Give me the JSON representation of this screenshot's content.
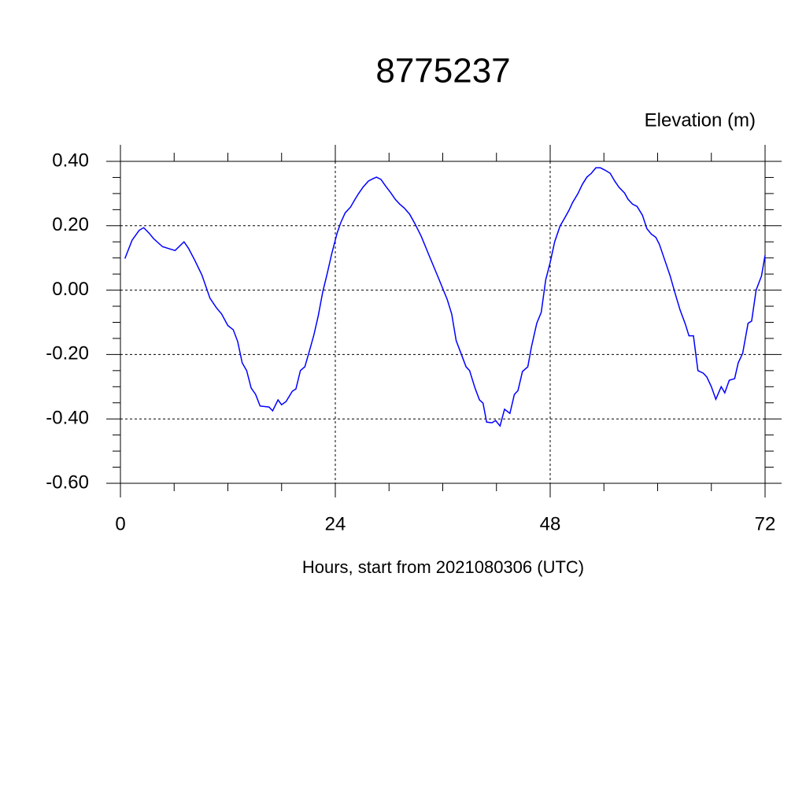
{
  "chart_data": {
    "type": "line",
    "title": "8775237",
    "ylabel": "Elevation (m)",
    "xlabel": "Hours, start from 2021080306 (UTC)",
    "x": [
      0.5,
      1.3,
      2.1,
      2.6,
      3.2,
      3.7,
      4.7,
      6.1,
      7.1,
      7.6,
      8.3,
      9.1,
      10.0,
      10.7,
      11.3,
      12.0,
      12.6,
      13.1,
      13.6,
      14.1,
      14.6,
      15.1,
      15.6,
      16.6,
      17.0,
      17.6,
      18.0,
      18.5,
      19.2,
      19.6,
      20.1,
      20.6,
      21.2,
      21.6,
      22.1,
      22.6,
      23.1,
      23.6,
      24.2,
      24.6,
      25.1,
      25.7,
      26.2,
      26.6,
      27.1,
      27.7,
      28.2,
      28.6,
      29.1,
      29.6,
      30.2,
      30.7,
      31.2,
      31.7,
      32.3,
      32.9,
      33.6,
      34.5,
      35.5,
      36.5,
      37.0,
      37.5,
      38.1,
      38.6,
      39.0,
      39.6,
      40.1,
      40.5,
      40.9,
      41.5,
      41.9,
      42.4,
      42.9,
      43.5,
      44.0,
      44.4,
      44.9,
      45.5,
      45.9,
      46.5,
      47.0,
      47.5,
      48.0,
      48.5,
      49.1,
      49.6,
      50.1,
      50.5,
      51.1,
      51.6,
      52.1,
      52.6,
      53.1,
      53.6,
      54.1,
      54.7,
      55.2,
      55.7,
      56.3,
      56.7,
      57.2,
      57.7,
      58.3,
      58.8,
      59.3,
      59.8,
      60.2,
      60.8,
      61.4,
      61.9,
      62.5,
      63.1,
      63.5,
      64.0,
      64.5,
      65.1,
      65.5,
      66.0,
      66.5,
      67.1,
      67.5,
      68.0,
      68.6,
      69.0,
      69.5,
      70.1,
      70.5,
      71.0,
      71.6,
      72.0
    ],
    "series": [
      {
        "color": "#0000ff",
        "values": [
          0.098,
          0.155,
          0.186,
          0.194,
          0.177,
          0.16,
          0.135,
          0.123,
          0.15,
          0.13,
          0.093,
          0.047,
          -0.025,
          -0.054,
          -0.074,
          -0.11,
          -0.123,
          -0.16,
          -0.226,
          -0.25,
          -0.304,
          -0.324,
          -0.36,
          -0.363,
          -0.375,
          -0.341,
          -0.356,
          -0.346,
          -0.314,
          -0.307,
          -0.25,
          -0.238,
          -0.18,
          -0.14,
          -0.079,
          -0.005,
          0.052,
          0.113,
          0.177,
          0.209,
          0.24,
          0.258,
          0.282,
          0.3,
          0.32,
          0.339,
          0.346,
          0.351,
          0.344,
          0.324,
          0.302,
          0.282,
          0.267,
          0.255,
          0.236,
          0.206,
          0.167,
          0.106,
          0.039,
          -0.029,
          -0.074,
          -0.157,
          -0.201,
          -0.238,
          -0.25,
          -0.304,
          -0.341,
          -0.351,
          -0.41,
          -0.412,
          -0.405,
          -0.422,
          -0.37,
          -0.383,
          -0.324,
          -0.312,
          -0.253,
          -0.238,
          -0.177,
          -0.103,
          -0.069,
          0.032,
          0.086,
          0.15,
          0.199,
          0.223,
          0.248,
          0.272,
          0.3,
          0.329,
          0.351,
          0.363,
          0.38,
          0.38,
          0.373,
          0.363,
          0.339,
          0.319,
          0.302,
          0.282,
          0.267,
          0.26,
          0.233,
          0.191,
          0.174,
          0.164,
          0.142,
          0.093,
          0.044,
          -0.005,
          -0.061,
          -0.106,
          -0.142,
          -0.142,
          -0.25,
          -0.258,
          -0.27,
          -0.3,
          -0.339,
          -0.3,
          -0.319,
          -0.28,
          -0.275,
          -0.226,
          -0.196,
          -0.103,
          -0.096,
          0.0,
          0.044,
          0.108
        ]
      }
    ],
    "xlim": [
      0,
      72
    ],
    "xticks": [
      0,
      24,
      48,
      72
    ],
    "xminorticks": [
      6,
      12,
      18,
      30,
      36,
      42,
      54,
      60,
      66
    ],
    "ylim": [
      -0.6,
      0.4
    ],
    "yticks": [
      {
        "value": -0.6,
        "label": "-0.60"
      },
      {
        "value": -0.4,
        "label": "-0.40"
      },
      {
        "value": -0.2,
        "label": "-0.20"
      },
      {
        "value": 0,
        "label": "0.00"
      },
      {
        "value": 0.2,
        "label": "0.20"
      },
      {
        "value": 0.4,
        "label": "0.40"
      }
    ],
    "yminorticks": [
      -0.55,
      -0.5,
      -0.45,
      -0.35,
      -0.3,
      -0.25,
      -0.15,
      -0.1,
      -0.05,
      0.05,
      0.1,
      0.15,
      0.25,
      0.3,
      0.35
    ],
    "grid": true
  }
}
